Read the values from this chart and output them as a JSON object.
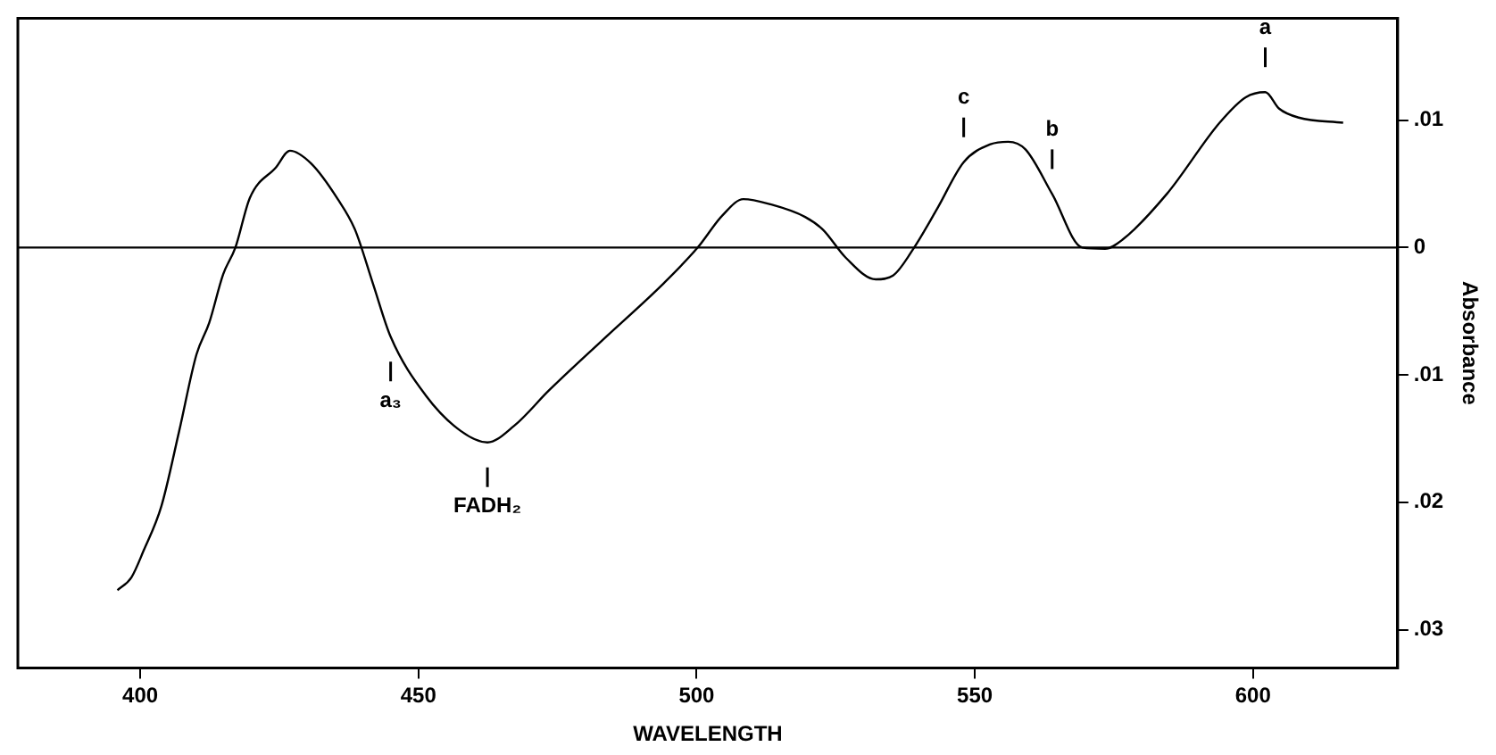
{
  "chart_data": {
    "type": "line",
    "xlabel": "WAVELENGTH",
    "ylabel": "Absorbance",
    "xlim": [
      378,
      626
    ],
    "ylim": [
      -0.033,
      0.018
    ],
    "xticks": [
      400,
      450,
      500,
      550,
      600
    ],
    "yticks": [
      {
        "value": 0.01,
        "label": ".01"
      },
      {
        "value": 0,
        "label": "0"
      },
      {
        "value": -0.01,
        "label": ".01"
      },
      {
        "value": -0.02,
        "label": ".02"
      },
      {
        "value": -0.03,
        "label": ".03"
      }
    ],
    "grid": false,
    "legend": false,
    "marker": "none",
    "line_style": "solid",
    "ref_lines": [
      {
        "axis": "y",
        "value": 0,
        "color": "#000000"
      }
    ],
    "series": [
      {
        "color": "#000000",
        "x": [
          395.9,
          398.4,
          400.6,
          403.8,
          407,
          410.1,
          412.4,
          414.9,
          417.1,
          419.7,
          424.4,
          426.9,
          430.7,
          435.5,
          438.6,
          441.8,
          445,
          451.3,
          457.6,
          462.4,
          467.2,
          473.5,
          483,
          494.1,
          500.2,
          504.6,
          508.4,
          513.2,
          519.5,
          522.7,
          526.8,
          532.2,
          535.3,
          539.1,
          543.3,
          548,
          552.8,
          556,
          559.1,
          563.9,
          569.3,
          573.4,
          576.5,
          584.5,
          594,
          598.7,
          602.2,
          604.7,
          608.2,
          616.2
        ],
        "values": [
          -0.0269,
          -0.0259,
          -0.0238,
          -0.0203,
          -0.0144,
          -0.0084,
          -0.0059,
          -0.0021,
          0,
          0.0039,
          0.0063,
          0.0076,
          0.0066,
          0.0038,
          0.0014,
          -0.0028,
          -0.007,
          -0.0116,
          -0.0144,
          -0.0153,
          -0.014,
          -0.0112,
          -0.0073,
          -0.0028,
          0,
          0.0025,
          0.0038,
          0.0034,
          0.0024,
          0.0014,
          -0.0008,
          -0.0025,
          -0.0022,
          0,
          0.0031,
          0.0067,
          0.0081,
          0.0083,
          0.0077,
          0.0042,
          0,
          -0.0001,
          0.0006,
          0.0042,
          0.0098,
          0.0118,
          0.0122,
          0.0109,
          0.0102,
          0.0098
        ]
      }
    ],
    "annotations": [
      {
        "text": "c",
        "x": 548,
        "y": 0.0067
      },
      {
        "text": "b",
        "x": 563.9,
        "y": 0.0042
      },
      {
        "text": "a",
        "x": 602.2,
        "y": 0.0122
      },
      {
        "text": "a₃",
        "x": 445,
        "y": -0.007
      },
      {
        "text": "FADH₂",
        "x": 462.4,
        "y": -0.0153
      }
    ]
  }
}
